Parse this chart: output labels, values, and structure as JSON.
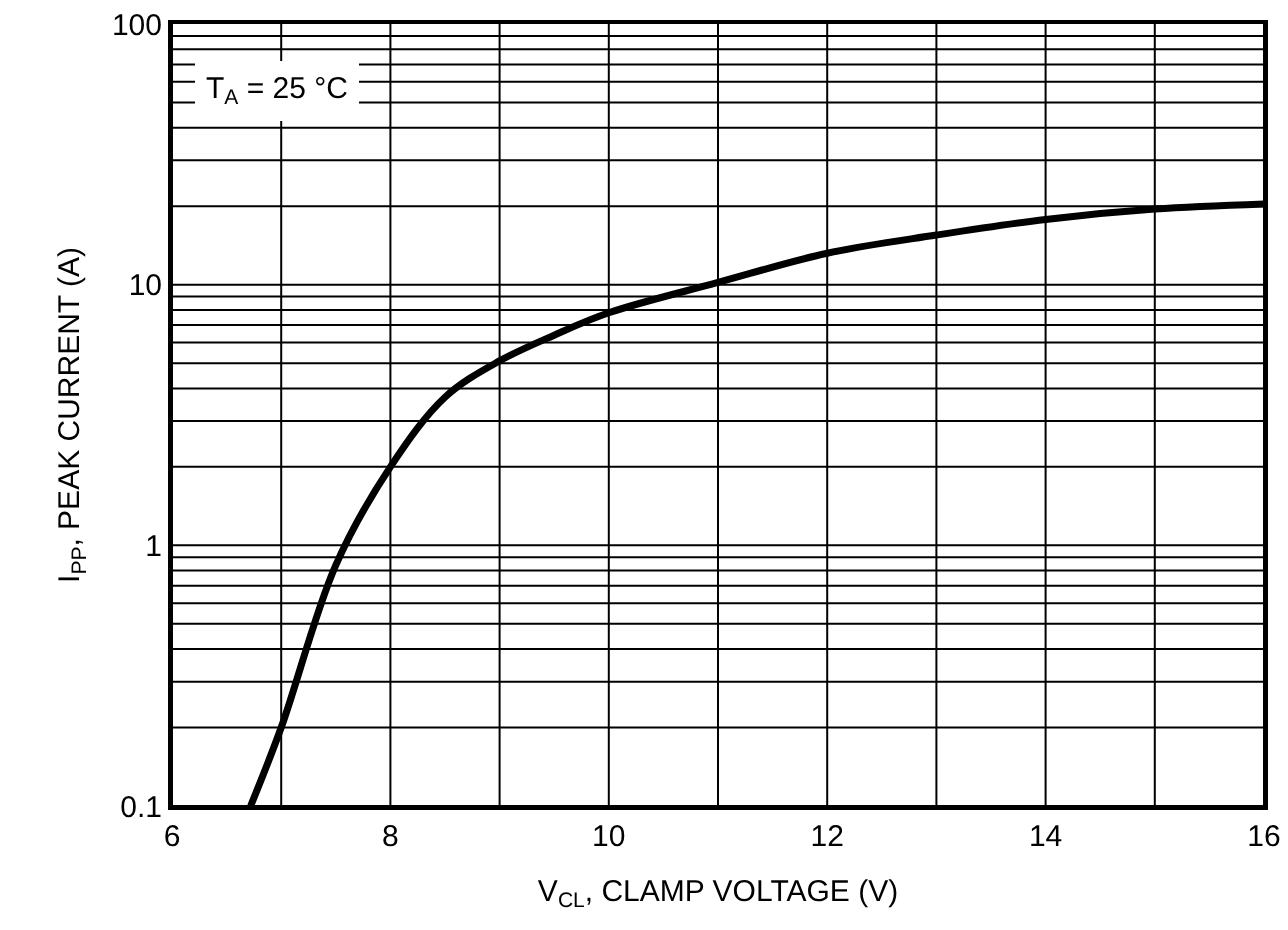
{
  "chart_data": {
    "type": "line",
    "xlabel": "V$_{CL}$, CLAMP VOLTAGE (V)",
    "ylabel": "I$_{PP}$, PEAK CURRENT (A)",
    "annotations": [
      "T$_{A}$ = 25 °C"
    ],
    "x": [
      6.72,
      7,
      7.5,
      8,
      8.5,
      9,
      9.5,
      10,
      11,
      12,
      13,
      14,
      15,
      16
    ],
    "series": [
      {
        "color": "#000000",
        "values": [
          0.1,
          0.2,
          0.84,
          2.0,
          3.7,
          5.1,
          6.4,
          7.8,
          10.2,
          13.2,
          15.5,
          17.8,
          19.5,
          20.4
        ]
      }
    ],
    "xlim": [
      6,
      16
    ],
    "xticks": [
      6,
      8,
      10,
      12,
      14,
      16
    ],
    "ylim": [
      0.1,
      100
    ],
    "yticks": [
      0.1,
      1,
      10,
      100
    ],
    "log": "y",
    "grid": true,
    "marker": "none",
    "line_style": "solid"
  }
}
